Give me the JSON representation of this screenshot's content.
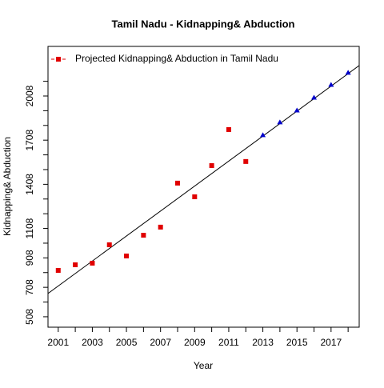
{
  "chart_data": {
    "type": "scatter",
    "title": "Tamil Nadu  -  Kidnapping& Abduction",
    "xlabel": "Year",
    "ylabel": "Kidnapping& Abduction",
    "x": [
      2001,
      2002,
      2003,
      2004,
      2005,
      2006,
      2007,
      2008,
      2009,
      2010,
      2011,
      2012,
      2013,
      2014,
      2015,
      2016,
      2017,
      2018
    ],
    "series": [
      {
        "name": "Projected  Kidnapping& Abduction  in  Tamil Nadu",
        "color": "#e00000",
        "marker": "square",
        "values": [
          823,
          861,
          872,
          997,
          921,
          1062,
          1117,
          1416,
          1323,
          1535,
          1780,
          1563,
          null,
          null,
          null,
          null,
          null,
          null
        ]
      },
      {
        "color": "#0000cc",
        "marker": "triangle",
        "values": [
          null,
          null,
          null,
          null,
          null,
          null,
          null,
          null,
          null,
          null,
          null,
          null,
          1742,
          1829,
          1910,
          1997,
          2084,
          2166
        ]
      }
    ],
    "trend": {
      "color": "#000000",
      "x": [
        2000.4,
        2018.65
      ],
      "values": [
        666,
        2215
      ]
    },
    "xlim": [
      2000.4,
      2018.65
    ],
    "ylim": [
      437,
      2345
    ],
    "xticks": [
      2001,
      2003,
      2005,
      2007,
      2009,
      2011,
      2013,
      2015,
      2017
    ],
    "xminorticks": [
      2002,
      2004,
      2006,
      2008,
      2010,
      2012,
      2014,
      2016,
      2018
    ],
    "yticks": [
      508,
      708,
      908,
      1108,
      1408,
      1708,
      2008
    ],
    "yminorticks": [
      608,
      808,
      1008,
      1208,
      1308,
      1508,
      1608,
      1808,
      1908,
      2108
    ],
    "legend": "top-left"
  }
}
